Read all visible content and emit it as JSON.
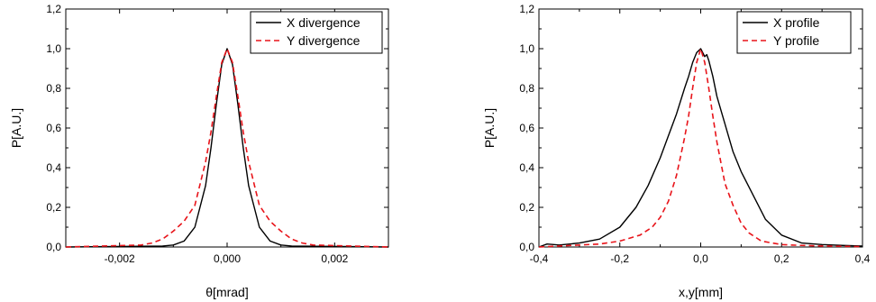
{
  "chart_data": [
    {
      "type": "line",
      "xlabel": "θ[mrad]",
      "ylabel": "P[A.U.]",
      "xlim": [
        -0.003,
        0.003
      ],
      "ylim": [
        0,
        1.2
      ],
      "xticks": [
        -0.002,
        0.0,
        0.002
      ],
      "xtick_labels": [
        "-0,002",
        "0,000",
        "0,002"
      ],
      "yticks": [
        0.0,
        0.2,
        0.4,
        0.6,
        0.8,
        1.0,
        1.2
      ],
      "ytick_labels": [
        "0,0",
        "0,2",
        "0,4",
        "0,6",
        "0,8",
        "1,0",
        "1,2"
      ],
      "legend_position": "top-right",
      "grid": false,
      "series": [
        {
          "name": "X divergence",
          "color": "#000000",
          "dash": "solid",
          "x": [
            -0.003,
            -0.0012,
            -0.001,
            -0.0008,
            -0.0006,
            -0.0004,
            -0.0003,
            -0.0002,
            -0.0001,
            0.0,
            0.0001,
            0.0002,
            0.0003,
            0.0004,
            0.0006,
            0.0008,
            0.001,
            0.0012,
            0.003
          ],
          "y": [
            0.0,
            0.005,
            0.01,
            0.03,
            0.1,
            0.31,
            0.5,
            0.72,
            0.92,
            1.0,
            0.92,
            0.72,
            0.5,
            0.31,
            0.1,
            0.03,
            0.01,
            0.005,
            0.0
          ]
        },
        {
          "name": "Y divergence",
          "color": "#e8141a",
          "dash": "dashed",
          "x": [
            -0.003,
            -0.0016,
            -0.0014,
            -0.0012,
            -0.001,
            -0.0008,
            -0.0006,
            -0.0004,
            -0.0003,
            -0.0002,
            -0.0001,
            0.0,
            0.0001,
            0.0002,
            0.0003,
            0.0004,
            0.0006,
            0.0008,
            0.001,
            0.0012,
            0.0014,
            0.0016,
            0.003
          ],
          "y": [
            0.0,
            0.01,
            0.02,
            0.04,
            0.08,
            0.13,
            0.21,
            0.43,
            0.58,
            0.76,
            0.93,
            1.0,
            0.93,
            0.76,
            0.58,
            0.43,
            0.21,
            0.13,
            0.08,
            0.04,
            0.02,
            0.01,
            0.0
          ]
        }
      ]
    },
    {
      "type": "line",
      "xlabel": "x,y[mm]",
      "ylabel": "P[A.U.]",
      "xlim": [
        -0.4,
        0.4
      ],
      "ylim": [
        0,
        1.2
      ],
      "xticks": [
        -0.4,
        -0.2,
        0.0,
        0.2,
        0.4
      ],
      "xtick_labels": [
        "-0,4",
        "-0,2",
        "0,0",
        "0,2",
        "0,4"
      ],
      "yticks": [
        0.0,
        0.2,
        0.4,
        0.6,
        0.8,
        1.0,
        1.2
      ],
      "ytick_labels": [
        "0,0",
        "0,2",
        "0,4",
        "0,6",
        "0,8",
        "1,0",
        "1,2"
      ],
      "legend_position": "top-right",
      "grid": false,
      "series": [
        {
          "name": "X profile",
          "color": "#000000",
          "dash": "solid",
          "x": [
            -0.4,
            -0.38,
            -0.35,
            -0.3,
            -0.25,
            -0.2,
            -0.16,
            -0.13,
            -0.1,
            -0.08,
            -0.06,
            -0.04,
            -0.03,
            -0.02,
            -0.01,
            0.0,
            0.01,
            0.015,
            0.02,
            0.03,
            0.04,
            0.06,
            0.08,
            0.1,
            0.13,
            0.16,
            0.2,
            0.25,
            0.3,
            0.35,
            0.4
          ],
          "y": [
            0.0,
            0.015,
            0.01,
            0.02,
            0.04,
            0.1,
            0.2,
            0.31,
            0.45,
            0.56,
            0.67,
            0.8,
            0.86,
            0.93,
            0.98,
            1.0,
            0.96,
            0.97,
            0.94,
            0.86,
            0.76,
            0.62,
            0.48,
            0.38,
            0.26,
            0.14,
            0.06,
            0.02,
            0.012,
            0.008,
            0.005
          ]
        },
        {
          "name": "Y profile",
          "color": "#e8141a",
          "dash": "dashed",
          "x": [
            -0.4,
            -0.3,
            -0.25,
            -0.2,
            -0.15,
            -0.12,
            -0.1,
            -0.08,
            -0.06,
            -0.04,
            -0.03,
            -0.02,
            -0.01,
            0.0,
            0.01,
            0.02,
            0.03,
            0.04,
            0.06,
            0.08,
            0.1,
            0.12,
            0.15,
            0.2,
            0.25,
            0.3,
            0.4
          ],
          "y": [
            0.0,
            0.01,
            0.015,
            0.03,
            0.06,
            0.1,
            0.15,
            0.23,
            0.36,
            0.55,
            0.66,
            0.8,
            0.93,
            1.0,
            0.93,
            0.8,
            0.66,
            0.53,
            0.32,
            0.21,
            0.12,
            0.07,
            0.03,
            0.012,
            0.008,
            0.005,
            0.002
          ]
        }
      ]
    }
  ]
}
